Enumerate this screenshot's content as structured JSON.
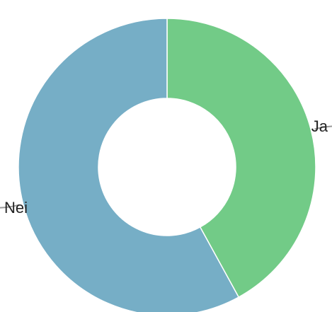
{
  "chart_data": {
    "type": "pie",
    "variant": "donut",
    "categories": [
      "Ja",
      "Nei"
    ],
    "values": [
      42,
      58
    ],
    "colors": [
      "#72cb87",
      "#76aec6"
    ],
    "slice_border_color": "#ffffff",
    "start_position": "top",
    "direction": "clockwise",
    "legend": "none",
    "labels_outside_with_leader_lines": true
  }
}
